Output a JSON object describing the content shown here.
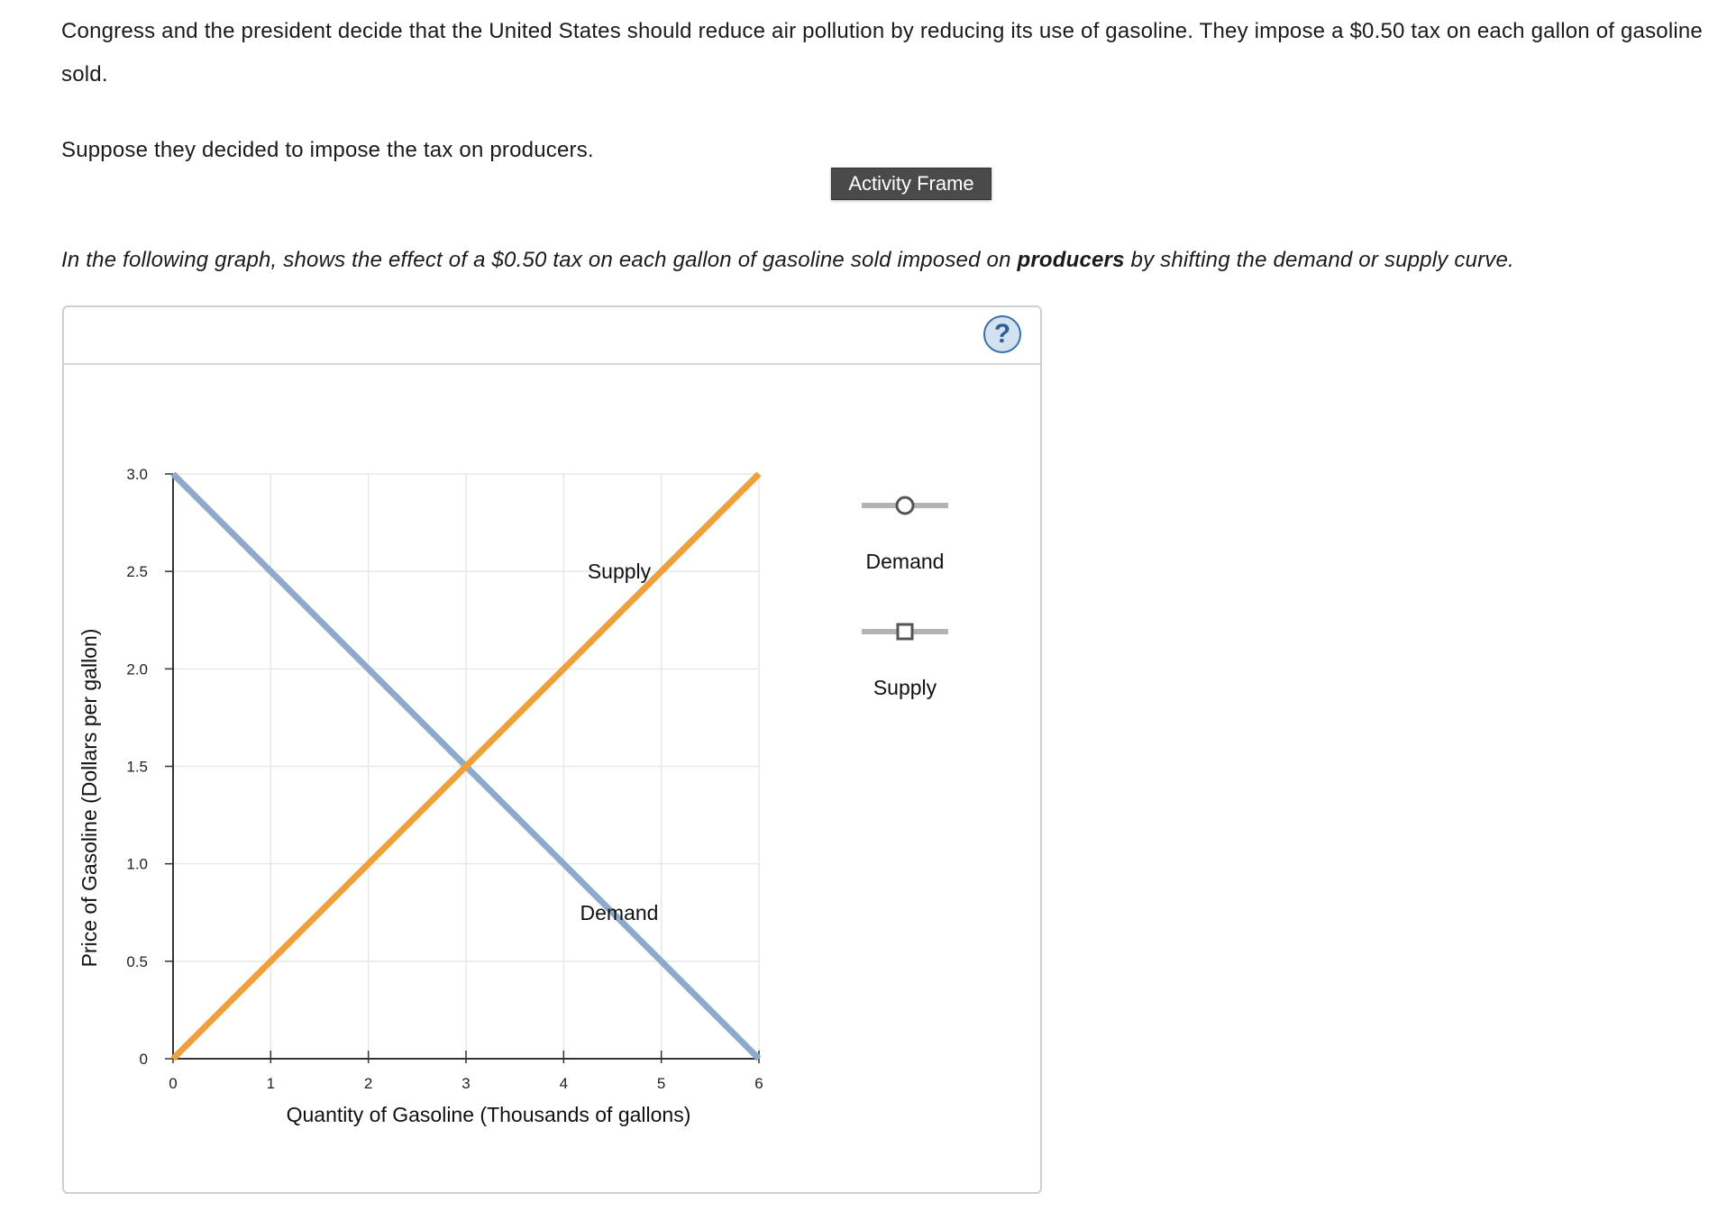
{
  "intro": {
    "paragraph1": "Congress and the president decide that the United States should reduce air pollution by reducing its use of gasoline. They impose a $0.50 tax on each gallon of gasoline sold.",
    "paragraph2": "Suppose they decided to impose the tax on producers.",
    "instruction_before": "In the following graph, shows the effect of a $0.50 tax on each gallon of gasoline sold imposed on ",
    "instruction_bold": "producers",
    "instruction_after": " by shifting the demand or supply curve."
  },
  "tooltip": "Activity Frame",
  "help": {
    "label": "?"
  },
  "legend": {
    "demand_label": "Demand",
    "supply_label": "Supply"
  },
  "colors": {
    "demand": "#8eaacb",
    "supply": "#f0a03a",
    "grid": "#e8e8e8",
    "axis": "#333333",
    "legend_line": "#b3b3b3",
    "legend_marker": "#555555"
  },
  "chart_data": {
    "type": "line",
    "title": "",
    "xlabel": "Quantity of Gasoline (Thousands of gallons)",
    "ylabel": "Price of Gasoline (Dollars per gallon)",
    "xlim": [
      0,
      6
    ],
    "ylim": [
      0,
      3
    ],
    "xticks": [
      "0",
      "1",
      "2",
      "3",
      "4",
      "5",
      "6"
    ],
    "yticks": [
      "0",
      "0.5",
      "1.0",
      "1.5",
      "2.0",
      "2.5",
      "3.0"
    ],
    "grid": true,
    "legend_position": "right",
    "series": [
      {
        "name": "Demand",
        "x": [
          0,
          6
        ],
        "y": [
          3.0,
          0
        ],
        "label_at": [
          4.8,
          0.75
        ]
      },
      {
        "name": "Supply",
        "x": [
          0,
          6
        ],
        "y": [
          0,
          3.0
        ],
        "label_at": [
          4.8,
          2.5
        ]
      }
    ]
  }
}
